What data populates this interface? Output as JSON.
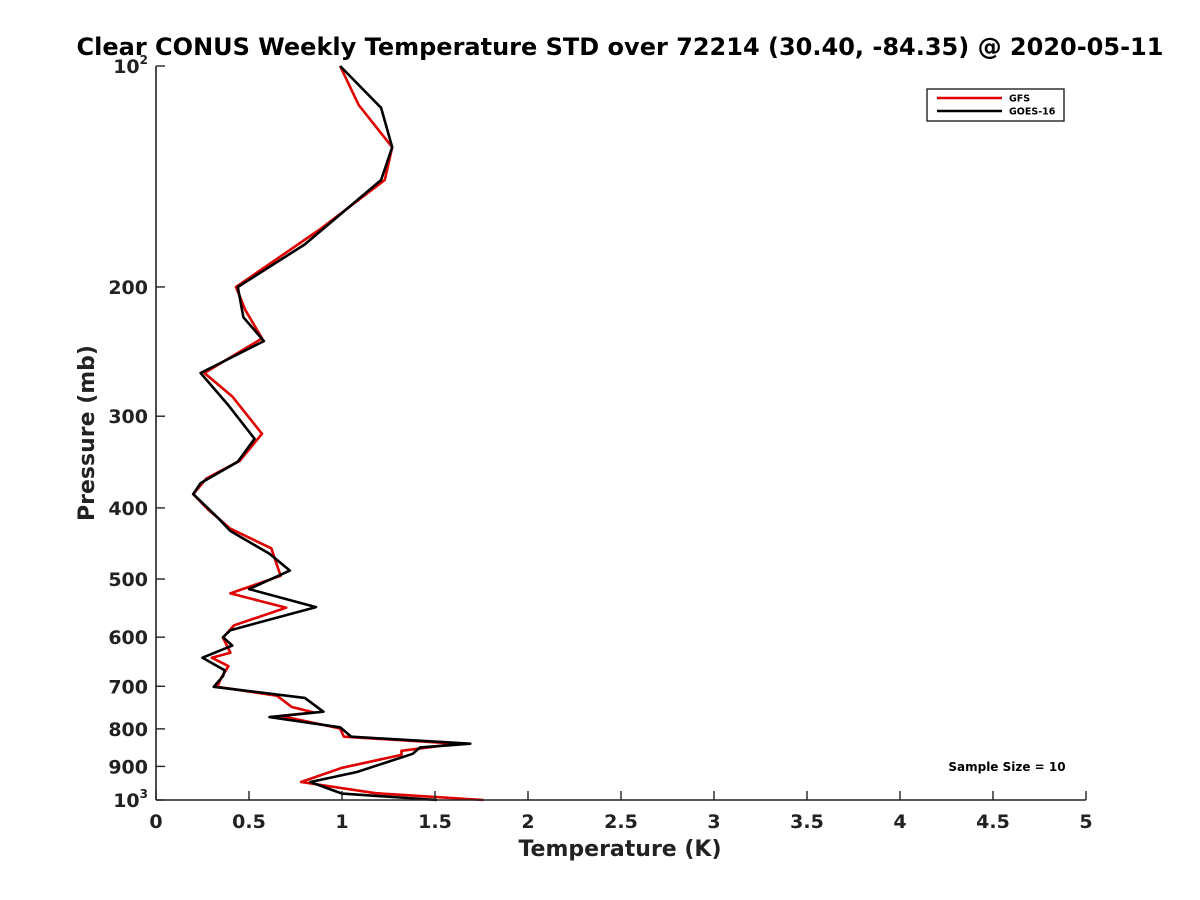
{
  "chart_data": {
    "type": "line",
    "title": "Clear CONUS Weekly Temperature STD over 72214 (30.40, -84.35) @ 2020-05-11",
    "xlabel": "Temperature (K)",
    "ylabel": "Pressure (mb)",
    "xlim": [
      0,
      5
    ],
    "ylim": [
      1000,
      100
    ],
    "y_scale": "log",
    "y_reversed": true,
    "grid": false,
    "legend_position": "top-right",
    "x_ticks": [
      {
        "value": 0,
        "label": "0"
      },
      {
        "value": 0.5,
        "label": "0.5"
      },
      {
        "value": 1,
        "label": "1"
      },
      {
        "value": 1.5,
        "label": "1.5"
      },
      {
        "value": 2,
        "label": "2"
      },
      {
        "value": 2.5,
        "label": "2.5"
      },
      {
        "value": 3,
        "label": "3"
      },
      {
        "value": 3.5,
        "label": "3.5"
      },
      {
        "value": 4,
        "label": "4"
      },
      {
        "value": 4.5,
        "label": "4.5"
      },
      {
        "value": 5,
        "label": "5"
      }
    ],
    "y_ticks": [
      {
        "value": 100,
        "base": "10",
        "exp": "2"
      },
      {
        "value": 200,
        "base": "200",
        "exp": ""
      },
      {
        "value": 300,
        "base": "300",
        "exp": ""
      },
      {
        "value": 400,
        "base": "400",
        "exp": ""
      },
      {
        "value": 500,
        "base": "500",
        "exp": ""
      },
      {
        "value": 600,
        "base": "600",
        "exp": ""
      },
      {
        "value": 700,
        "base": "700",
        "exp": ""
      },
      {
        "value": 800,
        "base": "800",
        "exp": ""
      },
      {
        "value": 900,
        "base": "900",
        "exp": ""
      },
      {
        "value": 1000,
        "base": "10",
        "exp": "3"
      }
    ],
    "series": [
      {
        "name": "GFS",
        "color": "#e00000",
        "points": [
          [
            0.99,
            100
          ],
          [
            1.09,
            113
          ],
          [
            1.27,
            129
          ],
          [
            1.23,
            143
          ],
          [
            0.88,
            167
          ],
          [
            0.43,
            200
          ],
          [
            0.48,
            215
          ],
          [
            0.57,
            235
          ],
          [
            0.26,
            262
          ],
          [
            0.41,
            282
          ],
          [
            0.57,
            317
          ],
          [
            0.45,
            345
          ],
          [
            0.27,
            365
          ],
          [
            0.2,
            383
          ],
          [
            0.28,
            402
          ],
          [
            0.4,
            427
          ],
          [
            0.62,
            454
          ],
          [
            0.67,
            495
          ],
          [
            0.4,
            523
          ],
          [
            0.7,
            547
          ],
          [
            0.42,
            578
          ],
          [
            0.36,
            601
          ],
          [
            0.4,
            630
          ],
          [
            0.3,
            640
          ],
          [
            0.39,
            657
          ],
          [
            0.35,
            682
          ],
          [
            0.33,
            701
          ],
          [
            0.65,
            721
          ],
          [
            0.73,
            747
          ],
          [
            0.85,
            760
          ],
          [
            0.67,
            768
          ],
          [
            0.99,
            799
          ],
          [
            1.01,
            820
          ],
          [
            1.62,
            838
          ],
          [
            1.32,
            857
          ],
          [
            1.32,
            868
          ],
          [
            1.0,
            904
          ],
          [
            0.78,
            945
          ],
          [
            1.18,
            979
          ],
          [
            1.76,
            1000
          ]
        ]
      },
      {
        "name": "GOES-16",
        "color": "#000000",
        "points": [
          [
            0.99,
            100
          ],
          [
            1.21,
            114
          ],
          [
            1.27,
            129
          ],
          [
            1.21,
            143
          ],
          [
            0.8,
            175
          ],
          [
            0.44,
            200
          ],
          [
            0.47,
            220
          ],
          [
            0.58,
            237
          ],
          [
            0.24,
            262
          ],
          [
            0.39,
            290
          ],
          [
            0.53,
            322
          ],
          [
            0.44,
            346
          ],
          [
            0.24,
            370
          ],
          [
            0.2,
            383
          ],
          [
            0.33,
            412
          ],
          [
            0.4,
            430
          ],
          [
            0.61,
            462
          ],
          [
            0.72,
            487
          ],
          [
            0.5,
            516
          ],
          [
            0.86,
            546
          ],
          [
            0.4,
            587
          ],
          [
            0.36,
            600
          ],
          [
            0.41,
            616
          ],
          [
            0.25,
            640
          ],
          [
            0.37,
            666
          ],
          [
            0.36,
            678
          ],
          [
            0.31,
            701
          ],
          [
            0.8,
            726
          ],
          [
            0.9,
            758
          ],
          [
            0.61,
            771
          ],
          [
            0.99,
            796
          ],
          [
            1.05,
            820
          ],
          [
            1.69,
            838
          ],
          [
            1.42,
            848
          ],
          [
            1.38,
            865
          ],
          [
            1.08,
            916
          ],
          [
            0.83,
            945
          ],
          [
            1.0,
            980
          ],
          [
            1.51,
            1000
          ]
        ]
      }
    ],
    "annotation": "Sample Size = 10"
  }
}
